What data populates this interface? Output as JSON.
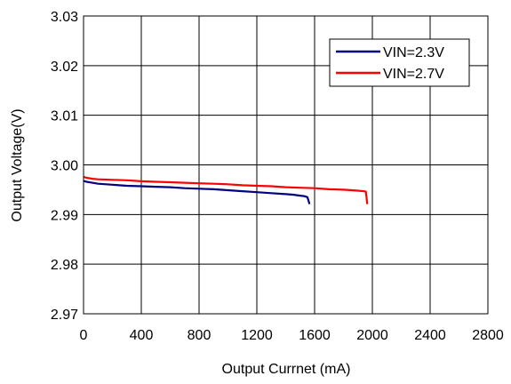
{
  "chart_data": {
    "type": "line",
    "title": "",
    "xlabel": "Output Currnet (mA)",
    "ylabel": "Output Voltage(V)",
    "xlim": [
      0,
      2800
    ],
    "ylim": [
      2.97,
      3.03
    ],
    "x_ticks": [
      "0",
      "400",
      "800",
      "1200",
      "1600",
      "2000",
      "2400",
      "2800"
    ],
    "y_ticks": [
      "2.97",
      "2.98",
      "2.99",
      "3.00",
      "3.01",
      "3.02",
      "3.03"
    ],
    "grid": true,
    "legend_position": "top-right",
    "series": [
      {
        "name": "VIN=2.3V",
        "color": "#000080",
        "x": [
          0,
          20,
          60,
          100,
          200,
          300,
          400,
          500,
          600,
          700,
          800,
          900,
          1000,
          1100,
          1200,
          1300,
          1400,
          1450,
          1500,
          1530,
          1550,
          1565
        ],
        "y": [
          2.9968,
          2.9966,
          2.9964,
          2.9962,
          2.996,
          2.9958,
          2.9957,
          2.9956,
          2.9955,
          2.9953,
          2.9952,
          2.9951,
          2.9949,
          2.9947,
          2.9945,
          2.9943,
          2.9941,
          2.994,
          2.9938,
          2.9937,
          2.9935,
          2.9921
        ]
      },
      {
        "name": "VIN=2.7V",
        "color": "#ff0000",
        "x": [
          0,
          20,
          60,
          100,
          200,
          300,
          400,
          500,
          600,
          700,
          800,
          900,
          1000,
          1100,
          1200,
          1300,
          1400,
          1500,
          1600,
          1700,
          1800,
          1900,
          1940,
          1955,
          1965
        ],
        "y": [
          2.9976,
          2.9974,
          2.9972,
          2.9971,
          2.997,
          2.9969,
          2.9967,
          2.9966,
          2.9965,
          2.9964,
          2.9963,
          2.9962,
          2.9961,
          2.9959,
          2.9958,
          2.9957,
          2.9955,
          2.9954,
          2.9953,
          2.9951,
          2.995,
          2.9948,
          2.9947,
          2.9946,
          2.9921
        ]
      }
    ]
  }
}
